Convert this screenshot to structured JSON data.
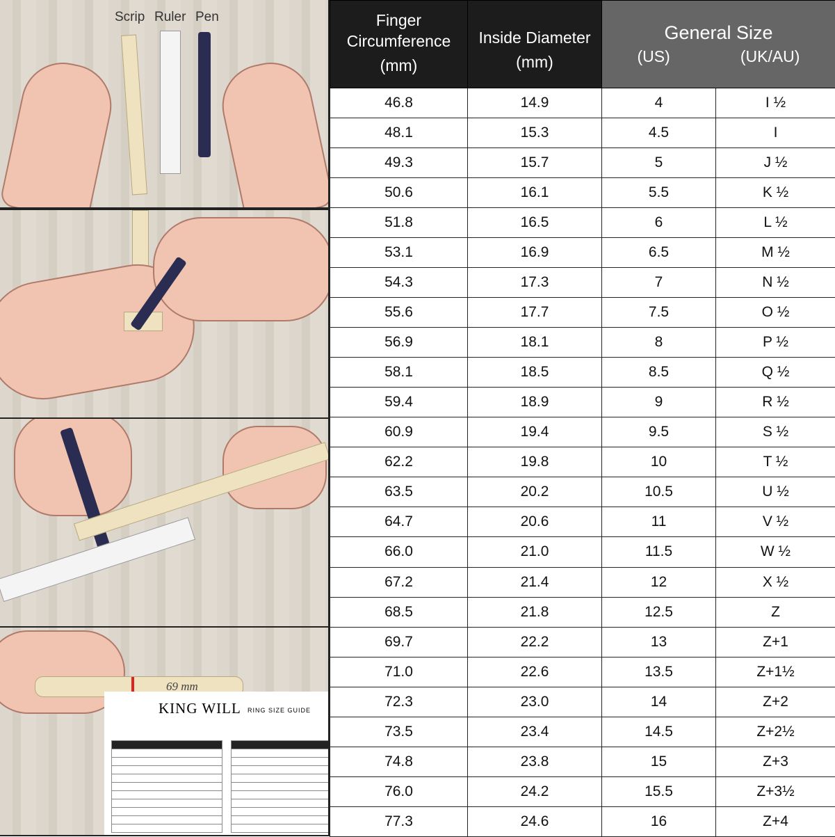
{
  "illustrations": {
    "step1_labels": [
      "Scrip",
      "Ruler",
      "Pen"
    ],
    "step4_mark": "69 mm",
    "guide_brand": "KING WILL",
    "guide_subtitle": "RING SIZE GUIDE"
  },
  "table": {
    "headers": {
      "circumference": [
        "Finger",
        "Circumference",
        "(mm)"
      ],
      "diameter": [
        "Inside Diameter",
        "(mm)"
      ],
      "general": "General Size",
      "us": "(US)",
      "uk": "(UK/AU)"
    },
    "rows": [
      [
        "46.8",
        "14.9",
        "4",
        "I ½"
      ],
      [
        "48.1",
        "15.3",
        "4.5",
        "I"
      ],
      [
        "49.3",
        "15.7",
        "5",
        "J ½"
      ],
      [
        "50.6",
        "16.1",
        "5.5",
        "K ½"
      ],
      [
        "51.8",
        "16.5",
        "6",
        "L ½"
      ],
      [
        "53.1",
        "16.9",
        "6.5",
        "M ½"
      ],
      [
        "54.3",
        "17.3",
        "7",
        "N ½"
      ],
      [
        "55.6",
        "17.7",
        "7.5",
        "O ½"
      ],
      [
        "56.9",
        "18.1",
        "8",
        "P ½"
      ],
      [
        "58.1",
        "18.5",
        "8.5",
        "Q ½"
      ],
      [
        "59.4",
        "18.9",
        "9",
        "R ½"
      ],
      [
        "60.9",
        "19.4",
        "9.5",
        "S ½"
      ],
      [
        "62.2",
        "19.8",
        "10",
        "T ½"
      ],
      [
        "63.5",
        "20.2",
        "10.5",
        "U ½"
      ],
      [
        "64.7",
        "20.6",
        "11",
        "V ½"
      ],
      [
        "66.0",
        "21.0",
        "11.5",
        "W ½"
      ],
      [
        "67.2",
        "21.4",
        "12",
        "X ½"
      ],
      [
        "68.5",
        "21.8",
        "12.5",
        "Z"
      ],
      [
        "69.7",
        "22.2",
        "13",
        "Z+1"
      ],
      [
        "71.0",
        "22.6",
        "13.5",
        "Z+1½"
      ],
      [
        "72.3",
        "23.0",
        "14",
        "Z+2"
      ],
      [
        "73.5",
        "23.4",
        "14.5",
        "Z+2½"
      ],
      [
        "74.8",
        "23.8",
        "15",
        "Z+3"
      ],
      [
        "76.0",
        "24.2",
        "15.5",
        "Z+3½"
      ],
      [
        "77.3",
        "24.6",
        "16",
        "Z+4"
      ]
    ]
  },
  "colors": {
    "header_dark": "#1c1c1c",
    "header_gray": "#666666"
  }
}
